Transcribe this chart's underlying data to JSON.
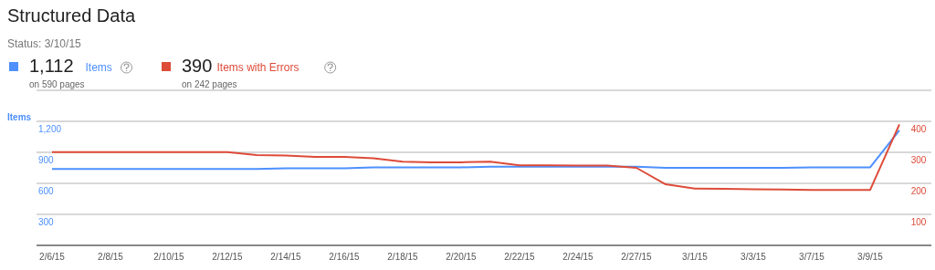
{
  "chart_data": {
    "type": "line",
    "title": "Structured Data",
    "subtitle": "Status: 3/10/15",
    "ylabel": "Items",
    "categories": [
      "2/6/15",
      null,
      "2/8/15",
      null,
      "2/10/15",
      null,
      "2/12/15",
      null,
      "2/14/15",
      null,
      "2/16/15",
      null,
      "2/18/15",
      null,
      "2/20/15",
      null,
      "2/22/15",
      null,
      "2/24/15",
      null,
      "2/27/15",
      null,
      "3/1/15",
      null,
      "3/3/15",
      null,
      "3/7/15",
      null,
      "3/9/15",
      null
    ],
    "series": [
      {
        "name": "Items",
        "color": "#4d90fe",
        "values": [
          740,
          740,
          740,
          740,
          740,
          740,
          740,
          740,
          745,
          745,
          745,
          755,
          755,
          755,
          755,
          760,
          760,
          760,
          760,
          760,
          760,
          750,
          750,
          750,
          750,
          750,
          755,
          755,
          755,
          1112
        ]
      },
      {
        "name": "Items with Errors",
        "color": "#dd4b39",
        "axis": "y2",
        "values": [
          301,
          301,
          301,
          301,
          301,
          301,
          301,
          291,
          290,
          285,
          285,
          281,
          270,
          268,
          268,
          270,
          258,
          258,
          257,
          257,
          250,
          197,
          183,
          182,
          181,
          180,
          179,
          179,
          179,
          390
        ]
      }
    ],
    "ylim": [
      0,
      1500
    ],
    "yticks": [
      {
        "value": 0,
        "label": null
      },
      300,
      600,
      900,
      {
        "value": 1200,
        "label": "1,200"
      },
      {
        "value": 1500,
        "label": null
      }
    ],
    "y2lim": [
      0,
      500
    ],
    "y2ticks": [
      {
        "value": 0,
        "label": null
      },
      100,
      200,
      300,
      400,
      {
        "value": 500,
        "label": null
      }
    ],
    "grid": "y",
    "legend": "top left",
    "marker": "none",
    "line_style": "solid",
    "annotations": [
      "1,112",
      "on 590 pages",
      "390",
      "on 242 pages"
    ]
  }
}
